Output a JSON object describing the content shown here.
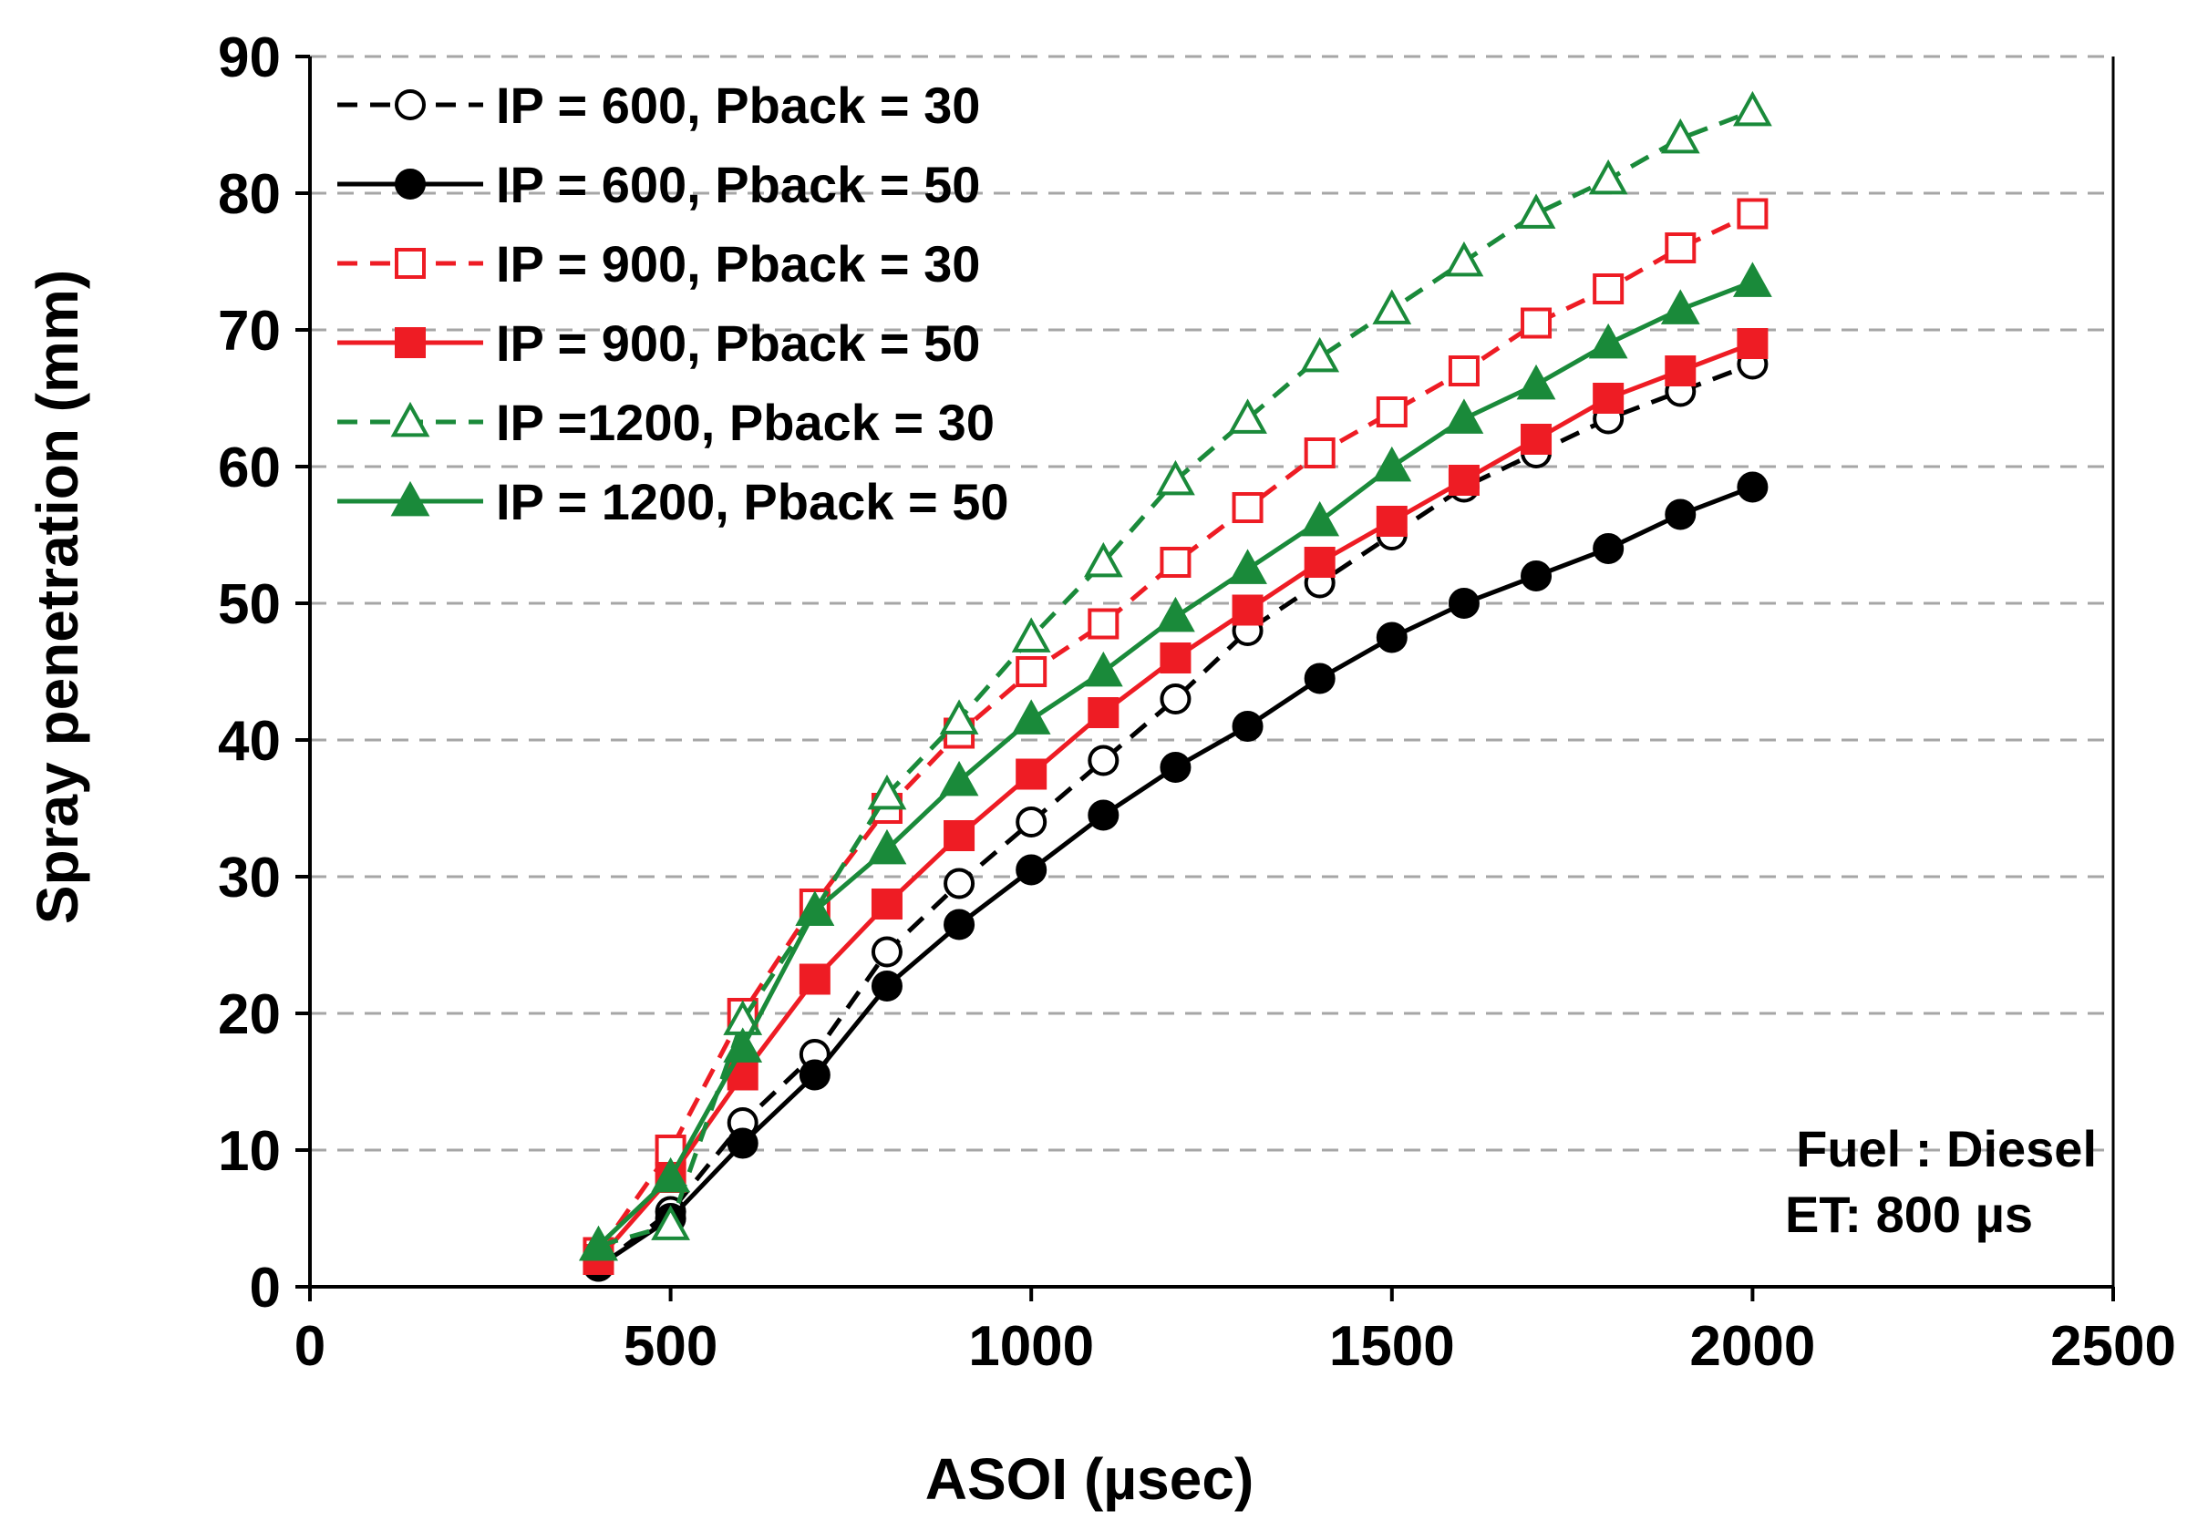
{
  "chart_data": {
    "type": "line",
    "title": "",
    "xlabel": "ASOI (µsec)",
    "ylabel": "Spray penetration (mm)",
    "xlim": [
      0,
      2500
    ],
    "ylim": [
      0,
      90
    ],
    "xticks": [
      0,
      500,
      1000,
      1500,
      2000,
      2500
    ],
    "yticks": [
      0,
      10,
      20,
      30,
      40,
      50,
      60,
      70,
      80,
      90
    ],
    "grid": "horizontal dashed",
    "legend_position": "top-left",
    "annotations": [
      "Fuel : Diesel",
      "ET: 800 µs"
    ],
    "x": [
      400,
      500,
      600,
      700,
      800,
      900,
      1000,
      1100,
      1200,
      1300,
      1400,
      1500,
      1600,
      1700,
      1800,
      1900,
      2000
    ],
    "series": [
      {
        "name": "IP = 600, Pback = 30",
        "color": "#000000",
        "dashed": true,
        "marker": "circle",
        "filled": false,
        "values": [
          1.5,
          5.5,
          12,
          17,
          24.5,
          29.5,
          34,
          38.5,
          43,
          48,
          51.5,
          55,
          58.5,
          61,
          63.5,
          65.5,
          67.5
        ]
      },
      {
        "name": "IP = 600, Pback = 50",
        "color": "#000000",
        "dashed": false,
        "marker": "circle",
        "filled": true,
        "values": [
          1.5,
          5,
          10.5,
          15.5,
          22,
          26.5,
          30.5,
          34.5,
          38,
          41,
          44.5,
          47.5,
          50,
          52,
          54,
          56.5,
          58.5
        ]
      },
      {
        "name": "IP = 900, Pback = 30",
        "color": "#ee1c24",
        "dashed": true,
        "marker": "square",
        "filled": false,
        "values": [
          2.5,
          10,
          20,
          28,
          35,
          40.5,
          45,
          48.5,
          53,
          57,
          61,
          64,
          67,
          70.5,
          73,
          76,
          78.5
        ]
      },
      {
        "name": "IP = 900, Pback = 50",
        "color": "#ee1c24",
        "dashed": false,
        "marker": "square",
        "filled": true,
        "values": [
          2,
          8,
          15.5,
          22.5,
          28,
          33,
          37.5,
          42,
          46,
          49.5,
          53,
          56,
          59,
          62,
          65,
          67,
          69
        ]
      },
      {
        "name": "IP =1200, Pback = 30",
        "color": "#1a8a3a",
        "dashed": true,
        "marker": "triangle",
        "filled": false,
        "values": [
          3,
          4.5,
          19.5,
          27.5,
          36,
          41.5,
          47.5,
          53,
          59,
          63.5,
          68,
          71.5,
          75,
          78.5,
          81,
          84,
          86
        ]
      },
      {
        "name": "IP = 1200, Pback = 50",
        "color": "#1a8a3a",
        "dashed": false,
        "marker": "triangle",
        "filled": true,
        "values": [
          3,
          8,
          17.5,
          27.5,
          32,
          37,
          41.5,
          45,
          49,
          52.5,
          56,
          60,
          63.5,
          66,
          69,
          71.5,
          73.5
        ]
      }
    ]
  }
}
